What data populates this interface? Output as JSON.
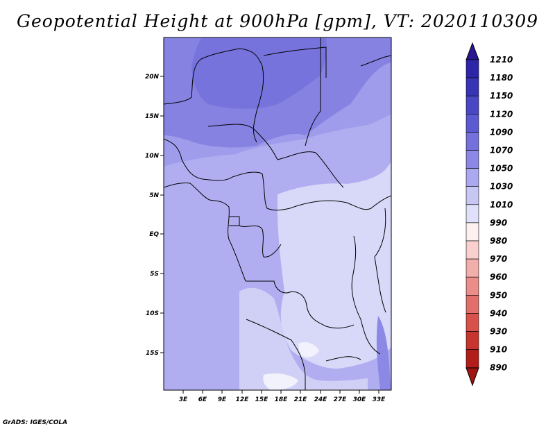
{
  "title": "Geopotential Height at 900hPa [gpm], VT: 2020110309",
  "credit": "GrADS: IGES/COLA",
  "map": {
    "lat_ticks": [
      "20N",
      "15N",
      "10N",
      "5N",
      "EQ",
      "5S",
      "10S",
      "15S"
    ],
    "lon_ticks": [
      "3E",
      "6E",
      "9E",
      "12E",
      "15E",
      "18E",
      "21E",
      "24E",
      "27E",
      "30E",
      "33E"
    ]
  },
  "colorbar": {
    "levels": [
      "1210",
      "1180",
      "1150",
      "1120",
      "1090",
      "1070",
      "1050",
      "1030",
      "1010",
      "990",
      "980",
      "970",
      "960",
      "950",
      "940",
      "930",
      "910",
      "890"
    ],
    "colors": [
      "#3a1fa0",
      "#2d26a8",
      "#3834b6",
      "#4a47c4",
      "#5c5ad2",
      "#7470dc",
      "#8c89e6",
      "#aaa8ee",
      "#c8c7f4",
      "#e0e0fa",
      "#fdf0ef",
      "#f9d0cd",
      "#f2aeaa",
      "#eb8d88",
      "#e26f69",
      "#d8514b",
      "#c8352f",
      "#b21d1a"
    ],
    "top_color": "#2a1690",
    "bottom_color": "#a01412"
  }
}
